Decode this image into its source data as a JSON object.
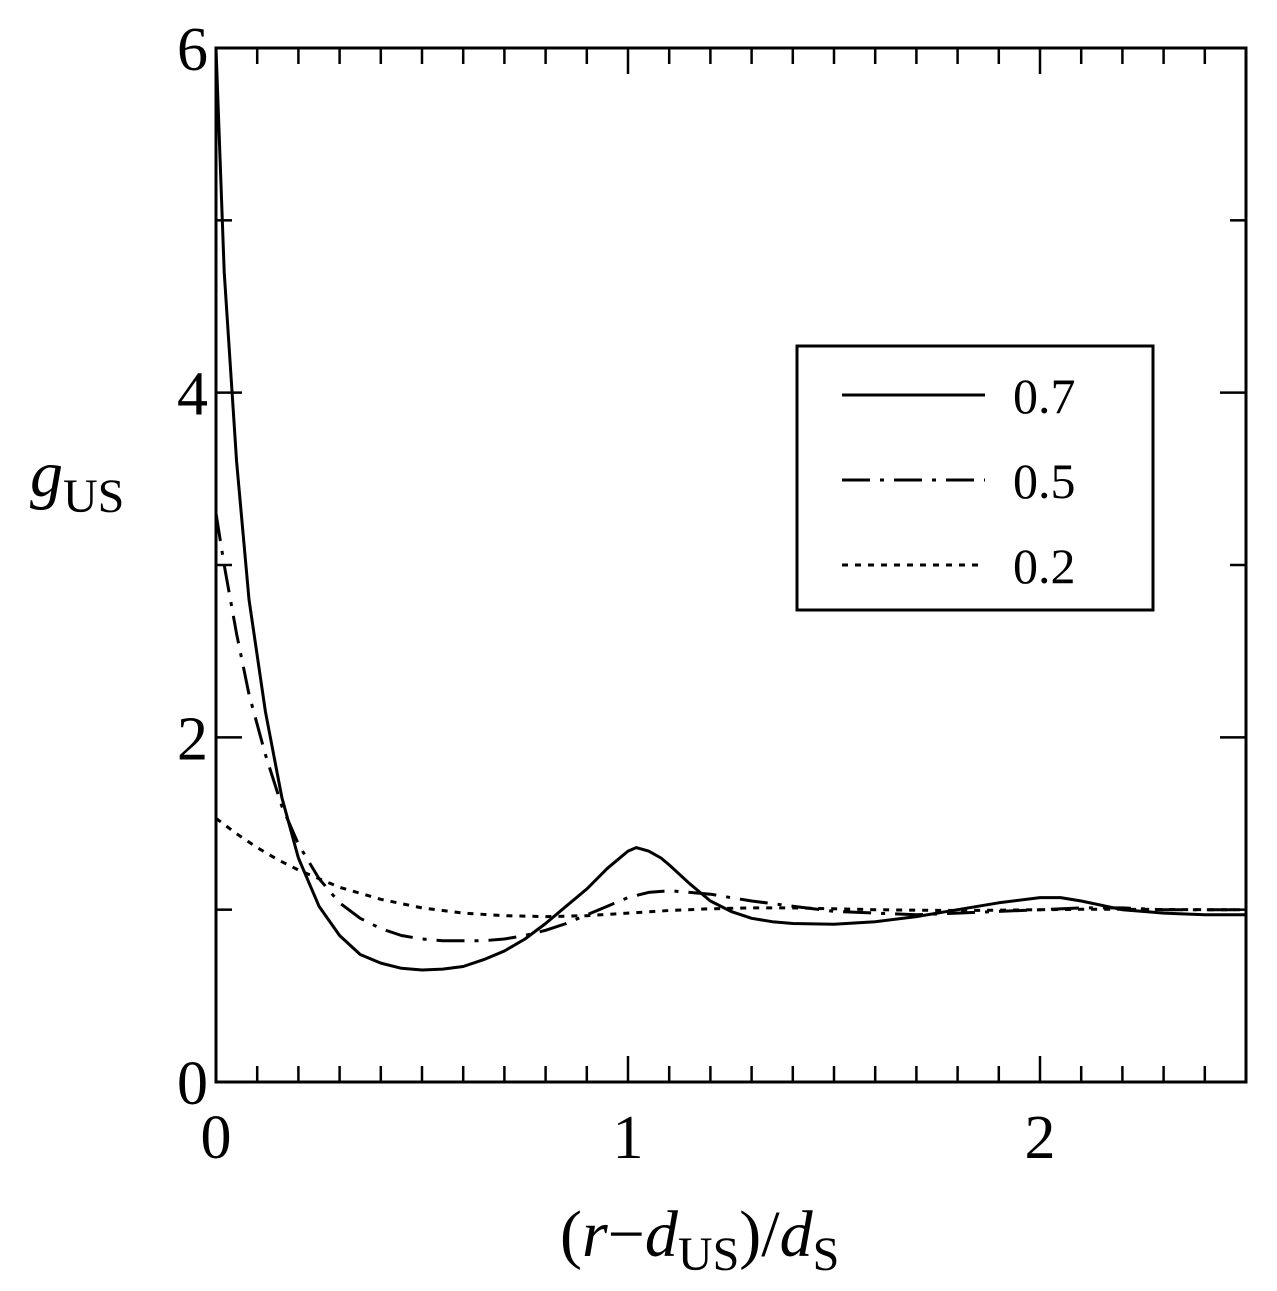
{
  "chart_data": {
    "type": "line",
    "xlabel": {
      "open": "(",
      "r": "r",
      "minus": "−",
      "d": "d",
      "d_sub": "US",
      "close": ")/",
      "d2": "d",
      "d2_sub": "S"
    },
    "ylabel": {
      "g": "g",
      "g_sub": "US"
    },
    "xlim": [
      0,
      2.5
    ],
    "ylim": [
      0,
      6
    ],
    "xticks": [
      {
        "value": 0,
        "label": "0"
      },
      {
        "value": 1,
        "label": "1"
      },
      {
        "value": 2,
        "label": "2"
      }
    ],
    "yticks": [
      {
        "value": 0,
        "label": "0"
      },
      {
        "value": 2,
        "label": "2"
      },
      {
        "value": 4,
        "label": "4"
      },
      {
        "value": 6,
        "label": "6"
      }
    ],
    "x_minor_step": 0.1,
    "y_minor_step": 1,
    "legend_position": "right-center",
    "series": [
      {
        "name": "0.7",
        "dash": "solid",
        "color": "#000000",
        "x": [
          0,
          0.02,
          0.05,
          0.08,
          0.12,
          0.16,
          0.2,
          0.25,
          0.3,
          0.35,
          0.4,
          0.45,
          0.5,
          0.55,
          0.6,
          0.65,
          0.7,
          0.75,
          0.8,
          0.85,
          0.9,
          0.95,
          1.0,
          1.02,
          1.05,
          1.08,
          1.1,
          1.15,
          1.2,
          1.25,
          1.3,
          1.35,
          1.4,
          1.5,
          1.6,
          1.7,
          1.8,
          1.9,
          2.0,
          2.05,
          2.1,
          2.2,
          2.3,
          2.4,
          2.5
        ],
        "y": [
          6.0,
          4.7,
          3.6,
          2.8,
          2.15,
          1.65,
          1.3,
          1.02,
          0.85,
          0.74,
          0.69,
          0.66,
          0.65,
          0.655,
          0.67,
          0.71,
          0.76,
          0.83,
          0.92,
          1.02,
          1.12,
          1.24,
          1.34,
          1.36,
          1.34,
          1.3,
          1.26,
          1.15,
          1.05,
          0.99,
          0.95,
          0.93,
          0.92,
          0.915,
          0.93,
          0.96,
          1.0,
          1.04,
          1.07,
          1.07,
          1.05,
          1.0,
          0.98,
          0.97,
          0.97
        ]
      },
      {
        "name": "0.5",
        "dash": "dash-dot",
        "color": "#000000",
        "x": [
          0,
          0.02,
          0.05,
          0.08,
          0.12,
          0.16,
          0.2,
          0.25,
          0.3,
          0.35,
          0.4,
          0.45,
          0.5,
          0.55,
          0.6,
          0.65,
          0.7,
          0.75,
          0.8,
          0.85,
          0.9,
          0.95,
          1.0,
          1.05,
          1.1,
          1.15,
          1.2,
          1.25,
          1.3,
          1.4,
          1.5,
          1.6,
          1.7,
          1.8,
          1.9,
          2.0,
          2.1,
          2.2,
          2.3,
          2.4,
          2.5
        ],
        "y": [
          3.3,
          3.0,
          2.6,
          2.25,
          1.9,
          1.6,
          1.38,
          1.18,
          1.04,
          0.95,
          0.89,
          0.85,
          0.83,
          0.82,
          0.82,
          0.82,
          0.83,
          0.85,
          0.88,
          0.92,
          0.97,
          1.02,
          1.07,
          1.1,
          1.11,
          1.1,
          1.09,
          1.07,
          1.05,
          1.02,
          0.99,
          0.98,
          0.97,
          0.98,
          0.99,
          1.0,
          1.01,
          1.01,
          1.0,
          1.0,
          1.0
        ]
      },
      {
        "name": "0.2",
        "dash": "dotted",
        "color": "#000000",
        "x": [
          0,
          0.05,
          0.1,
          0.15,
          0.2,
          0.3,
          0.4,
          0.5,
          0.6,
          0.7,
          0.8,
          0.9,
          1.0,
          1.1,
          1.2,
          1.3,
          1.4,
          1.5,
          1.6,
          1.7,
          1.8,
          1.9,
          2.0,
          2.1,
          2.2,
          2.3,
          2.4,
          2.5
        ],
        "y": [
          1.53,
          1.44,
          1.36,
          1.29,
          1.23,
          1.13,
          1.06,
          1.01,
          0.98,
          0.965,
          0.96,
          0.965,
          0.98,
          0.995,
          1.005,
          1.01,
          1.01,
          1.005,
          1.0,
          0.997,
          0.995,
          0.997,
          1.0,
          1.002,
          1.002,
          1.001,
          1.0,
          1.0
        ]
      }
    ]
  }
}
